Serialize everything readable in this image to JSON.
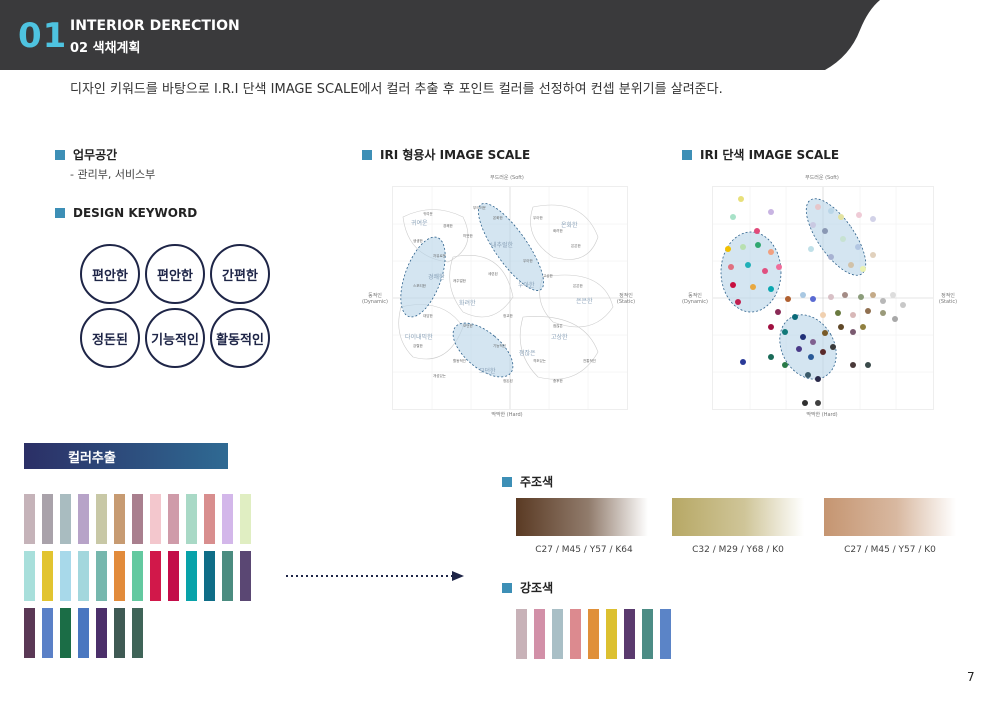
{
  "header": {
    "number": "01",
    "title": "INTERIOR DERECTION",
    "subtitle": "02 색채계획"
  },
  "intro": "디자인 키워드를 바탕으로 I.R.I 단색 IMAGE SCALE에서 컬러 추출 후 포인트 컬러를 선정하여 컨셉 분위기를 살려준다.",
  "sections": {
    "work_space": "업무공간",
    "work_space_sub": "- 관리부, 서비스부",
    "design_keyword": "DESIGN KEYWORD",
    "iri_word": "IRI 형용사 IMAGE SCALE",
    "iri_color": "IRI 단색 IMAGE SCALE",
    "extract": "컬러추출",
    "main_color": "주조색",
    "accent_color": "강조색"
  },
  "keywords": [
    "편안한",
    "편안한",
    "간편한",
    "정돈된",
    "기능적인",
    "활동적인"
  ],
  "scale_axes": {
    "top": "부드러운 (Soft)",
    "bottom": "딱딱한 (Hard)",
    "left": "동적인 (Dynamic)",
    "right": "정적인 (Static)"
  },
  "word_scale_words": [
    "귀여운",
    "경쾌한",
    "내추럴한",
    "온화한",
    "우아한",
    "화려한",
    "은은한",
    "다이내믹한",
    "고상한",
    "점잖은",
    "모던한"
  ],
  "extract_rows": [
    [
      "#c5b3b9",
      "#a9a2aa",
      "#a9bcc0",
      "#b7a3c8",
      "#c8c8a6",
      "#c79b72",
      "#a97f8e",
      "#f3c7cd",
      "#cf9ba9",
      "#a9d9c6",
      "#d88e8e",
      "#d3b7ea",
      "#e0eec2"
    ],
    [
      "#a8dfdb",
      "#e2c430",
      "#a8d9ea",
      "#a3d7dd",
      "#76b7ad",
      "#e28b3b",
      "#63c9a0",
      "#d1184a",
      "#c30d49",
      "#08a2a9",
      "#0f6d87",
      "#4b8c80",
      "#5a4773"
    ],
    [
      "#5a3855",
      "#5a80c7",
      "#1b6d46",
      "#4a77c0",
      "#4b2f6a",
      "#3f5a54",
      "#3f6458"
    ]
  ],
  "main_colors": [
    {
      "from": "#5a3a23",
      "cmyk": "C27 / M45 / Y57 / K64"
    },
    {
      "from": "#b7a865",
      "cmyk": "C32 / M29 / Y68 / K0"
    },
    {
      "from": "#c59571",
      "cmyk": "C27 / M45 / Y57 / K0"
    }
  ],
  "accent_colors": [
    "#c8b2b8",
    "#d290a8",
    "#a9bfc6",
    "#dc8a8f",
    "#e0903a",
    "#dcc030",
    "#5a3a6e",
    "#4c8c85",
    "#5b84c7"
  ],
  "page_number": "7"
}
